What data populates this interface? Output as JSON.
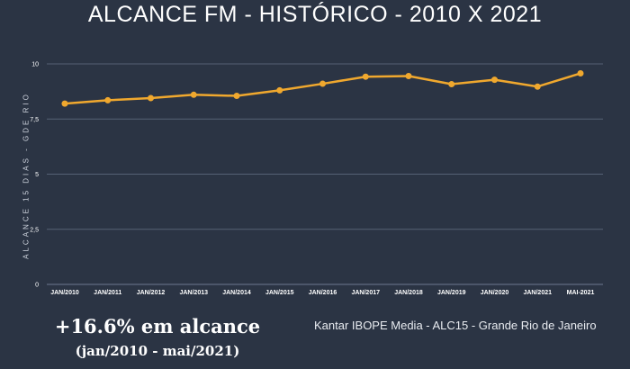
{
  "header": {
    "title": "ALCANCE FM - HISTÓRICO - 2010 X 2021"
  },
  "summary": {
    "growth": "+16.6% em alcance",
    "period": "(jan/2010 - mai/2021)"
  },
  "source": "Kantar IBOPE Media - ALC15 - Grande Rio de Janeiro",
  "colors": {
    "background": "#2b3444",
    "line": "#f0a82e",
    "grid": "#566175"
  },
  "chart_data": {
    "type": "line",
    "categories": [
      "JAN/2010",
      "JAN/2011",
      "JAN/2012",
      "JAN/2013",
      "JAN/2014",
      "JAN/2015",
      "JAN/2016",
      "JAN/2017",
      "JAN/2018",
      "JAN/2019",
      "JAN/2020",
      "JAN/2021",
      "MAI-2021"
    ],
    "series": [
      {
        "values": [
          8.2,
          8.35,
          8.45,
          8.6,
          8.55,
          8.8,
          9.1,
          9.42,
          9.45,
          9.08,
          9.28,
          8.97,
          9.57
        ]
      }
    ],
    "ylabel": "ALCANCE 15 DIAS - GDE RIO",
    "yticks": [
      {
        "value": 0,
        "label": "0"
      },
      {
        "value": 2.5,
        "label": "2,5"
      },
      {
        "value": 5,
        "label": "5"
      },
      {
        "value": 7.5,
        "label": "7,5"
      },
      {
        "value": 10,
        "label": "10"
      }
    ],
    "ylim": [
      0,
      10
    ],
    "grid": true,
    "legend": "none"
  }
}
